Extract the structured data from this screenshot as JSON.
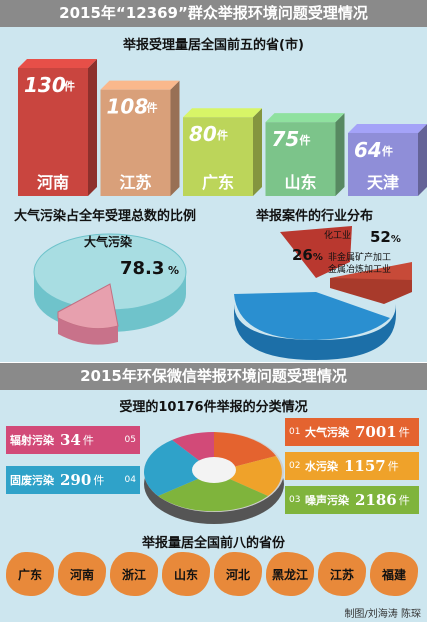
{
  "top": {
    "title": "2015年“12369”群众举报环境问题受理情况",
    "top5_title": "举报受理量居全国前五的省(市)",
    "unit": "件",
    "provinces": [
      {
        "name": "河南",
        "value": 130,
        "color": "#c9453f"
      },
      {
        "name": "江苏",
        "value": 108,
        "color": "#d9a07a"
      },
      {
        "name": "广东",
        "value": 80,
        "color": "#bcd55a"
      },
      {
        "name": "山东",
        "value": 75,
        "color": "#7cc48a"
      },
      {
        "name": "天津",
        "value": 64,
        "color": "#8f8ed8"
      }
    ],
    "air_title": "大气污染占全年受理总数的比例",
    "air_label": "大气污染",
    "air_pct": "78.3",
    "industry_title": "举报案件的行业分布",
    "industry": [
      {
        "pct": "26",
        "label": "化工业"
      },
      {
        "pct": "52",
        "label": "非金属矿产加工"
      },
      {
        "pct": "",
        "label": "金属冶炼加工业"
      }
    ]
  },
  "bottom": {
    "title": "2015年环保微信举报环境问题受理情况",
    "subtitle": "受理的10176件举报的分类情况",
    "categories": [
      {
        "num": "01",
        "name": "大气污染",
        "value": 7001,
        "color": "#e4632f"
      },
      {
        "num": "02",
        "name": "水污染",
        "value": 1157,
        "color": "#efa22a"
      },
      {
        "num": "03",
        "name": "噪声污染",
        "value": 2186,
        "color": "#7fb43c"
      },
      {
        "num": "04",
        "name": "固废污染",
        "value": 290,
        "color": "#2fa2c9"
      },
      {
        "num": "05",
        "name": "辐射污染",
        "value": 34,
        "color": "#d24a78"
      }
    ],
    "unit": "件",
    "top8_title": "举报量居全国前八的省份",
    "top8": [
      "广东",
      "河南",
      "浙江",
      "山东",
      "河北",
      "黑龙江",
      "江苏",
      "福建"
    ],
    "credit": "制图/刘海涛 陈琛"
  },
  "chart_data": [
    {
      "type": "bar",
      "title": "举报受理量居全国前五的省(市)",
      "categories": [
        "河南",
        "江苏",
        "广东",
        "山东",
        "天津"
      ],
      "values": [
        130,
        108,
        80,
        75,
        64
      ],
      "unit": "件"
    },
    {
      "type": "pie",
      "title": "大气污染占全年受理总数的比例",
      "labels": [
        "大气污染"
      ],
      "values": [
        78.3
      ],
      "unit": "%"
    },
    {
      "type": "pie",
      "title": "举报案件的行业分布",
      "labels": [
        "化工业",
        "非金属矿产加工",
        "金属冶炼加工业"
      ],
      "values": [
        26,
        52,
        null
      ],
      "unit": "%"
    },
    {
      "type": "pie",
      "title": "受理的10176件举报的分类情况",
      "labels": [
        "大气污染",
        "水污染",
        "噪声污染",
        "固废污染",
        "辐射污染"
      ],
      "values": [
        7001,
        1157,
        2186,
        290,
        34
      ],
      "unit": "件"
    }
  ]
}
